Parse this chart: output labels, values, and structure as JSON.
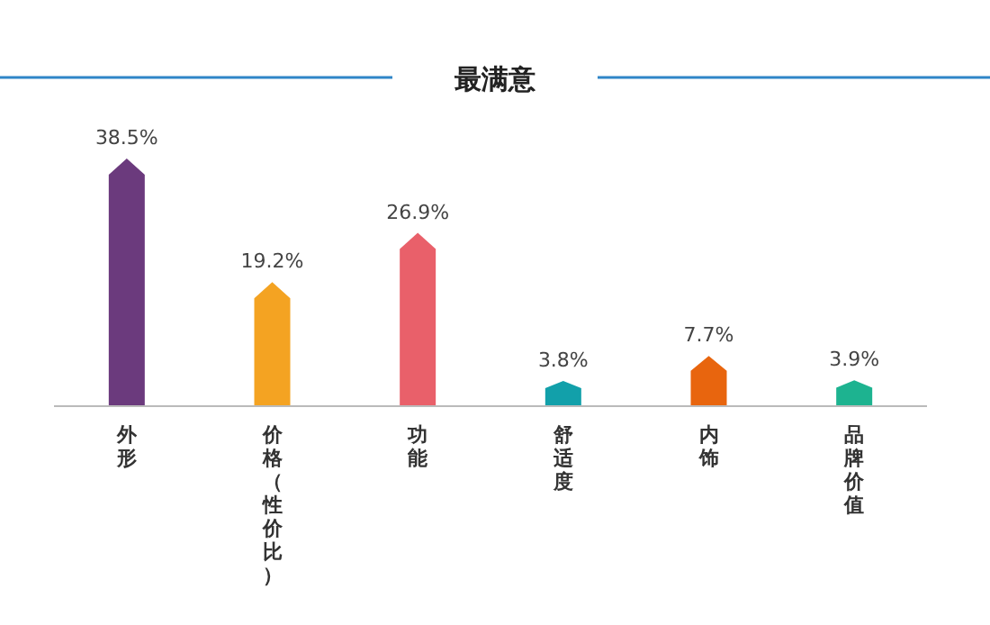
{
  "chart_data": {
    "type": "bar",
    "title": "最满意",
    "categories": [
      "外形",
      "价格（性价比）",
      "功能",
      "舒适度",
      "内饰",
      "品牌价值"
    ],
    "values": [
      38.5,
      19.2,
      26.9,
      3.8,
      7.7,
      3.9
    ],
    "value_labels": [
      "38.5%",
      "19.2%",
      "26.9%",
      "3.8%",
      "7.7%",
      "3.9%"
    ],
    "colors": [
      "#6b3a7d",
      "#f4a322",
      "#e9606a",
      "#12a0aa",
      "#e8650e",
      "#1db390"
    ]
  }
}
